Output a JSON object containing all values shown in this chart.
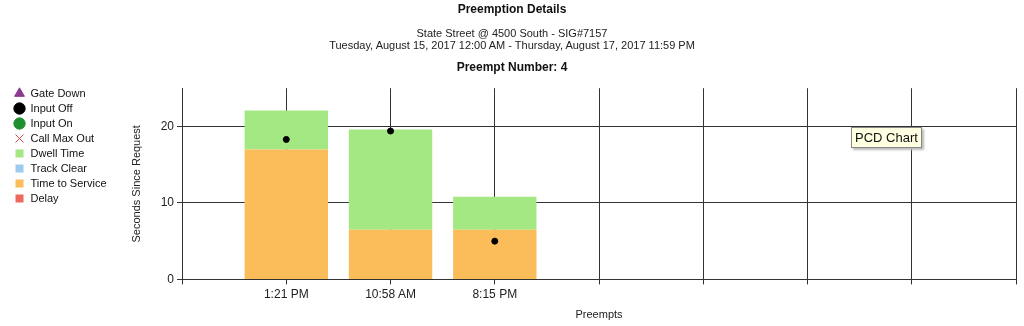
{
  "chart_data": {
    "type": "bar",
    "title": "Preemption Details",
    "subtitle": "State Street @ 4500 South - SIG#7157\nTuesday, August 15, 2017 12:00 AM - Thursday, August 17, 2017 11:59 PM",
    "annotations": [
      "Preempt Number: 4",
      "PCD Chart"
    ],
    "xlabel": "Preempts",
    "ylabel": "Seconds Since Request",
    "categories": [
      null,
      "1:21 PM",
      "10:58 AM",
      "8:15 PM",
      null,
      null,
      null,
      null,
      null
    ],
    "stacked": true,
    "grid": true,
    "legend": "left",
    "ylim": [
      0,
      25
    ],
    "yticks": [
      0,
      10,
      20
    ],
    "series": [
      {
        "name": "Gate Down",
        "type": "scatter",
        "marker": "triangle",
        "color": "#8b3a8f",
        "values": [
          null,
          null,
          null,
          null,
          null,
          null,
          null,
          null,
          null
        ]
      },
      {
        "name": "Input Off",
        "type": "scatter",
        "marker": "circle",
        "color": "#000000",
        "values": [
          null,
          18.3,
          19.4,
          5.0,
          null,
          null,
          null,
          null,
          null
        ]
      },
      {
        "name": "Input On",
        "type": "scatter",
        "marker": "circle",
        "color": "#1f8f2f",
        "values": [
          null,
          null,
          null,
          null,
          null,
          null,
          null,
          null,
          null
        ]
      },
      {
        "name": "Call Max Out",
        "type": "scatter",
        "marker": "cross",
        "color": "#e04848",
        "values": [
          null,
          null,
          null,
          null,
          null,
          null,
          null,
          null,
          null
        ]
      },
      {
        "name": "Delay",
        "color": "#ec6a5c",
        "values": [
          null,
          null,
          null,
          null,
          null,
          null,
          null,
          null,
          null
        ]
      },
      {
        "name": "Time to Service",
        "color": "#fbbd59",
        "values": [
          null,
          17.0,
          6.5,
          6.5,
          null,
          null,
          null,
          null,
          null
        ]
      },
      {
        "name": "Track Clear",
        "color": "#9ccbf0",
        "values": [
          null,
          null,
          null,
          null,
          null,
          null,
          null,
          null,
          null
        ]
      },
      {
        "name": "Dwell Time",
        "color": "#a3e883",
        "values": [
          null,
          5.1,
          13.1,
          4.3,
          null,
          null,
          null,
          null,
          null
        ]
      }
    ]
  }
}
